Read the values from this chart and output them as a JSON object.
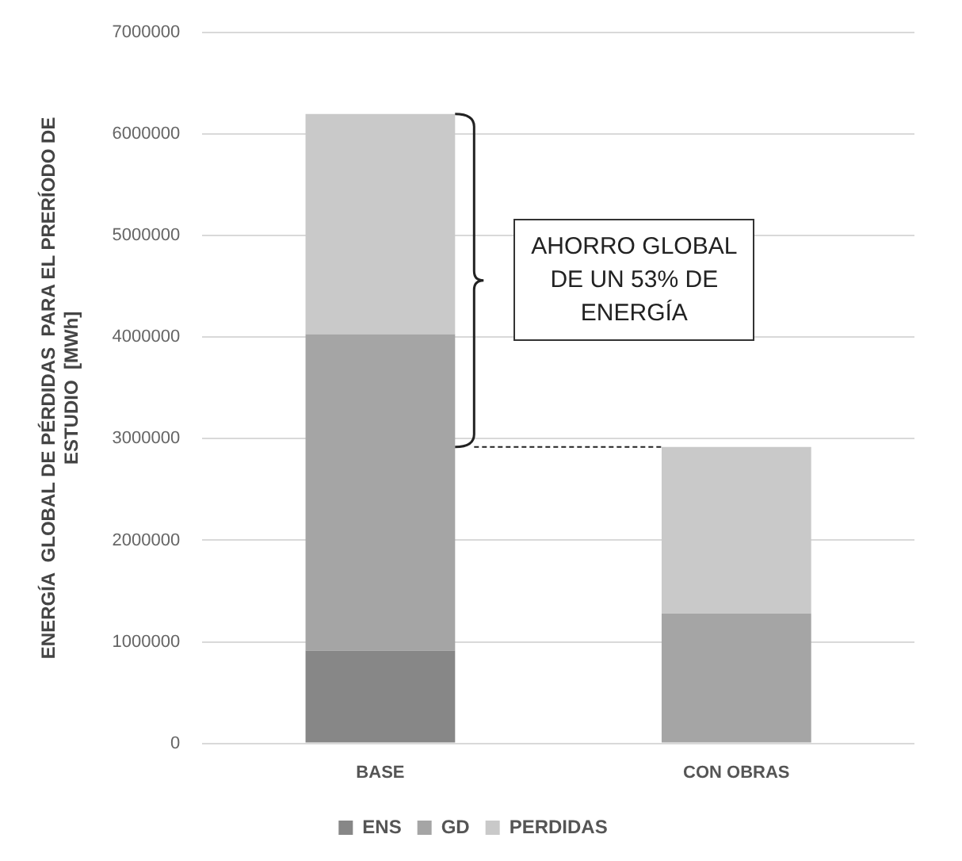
{
  "chart_data": {
    "type": "bar",
    "stacked": true,
    "ylabel": "ENERGÍA  GLOBAL DE PÉRDIDAS  PARA EL PRERÍODO DE\nESTUDIO  [MWh]",
    "categories": [
      "BASE",
      "CON OBRAS"
    ],
    "series": [
      {
        "name": "ENS",
        "color": "#878787",
        "values": [
          915000,
          0
        ]
      },
      {
        "name": "GD",
        "color": "#a5a5a5",
        "values": [
          3115000,
          1280000
        ]
      },
      {
        "name": "PERDIDAS",
        "color": "#c9c9c9",
        "values": [
          2170000,
          1640000
        ]
      }
    ],
    "ylim": [
      0,
      7000000
    ],
    "yticks": [
      0,
      1000000,
      2000000,
      3000000,
      4000000,
      5000000,
      6000000,
      7000000
    ],
    "grid": "y",
    "legend": "bottom",
    "annotations": [
      "AHORRO GLOBAL\nDE UN 53% DE\nENERGÍA"
    ]
  }
}
